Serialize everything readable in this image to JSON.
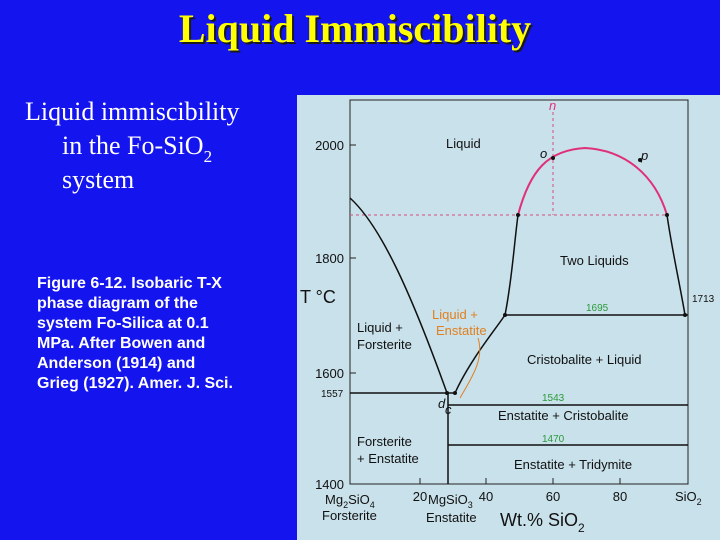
{
  "header": {
    "title": "Liquid Immiscibility"
  },
  "body": {
    "heading_lines": [
      "Liquid immiscibility",
      "in the Fo-SiO",
      "system"
    ],
    "heading_subscript": "2",
    "caption_lines": [
      "Figure 6-12. Isobaric T-X",
      "phase diagram of the",
      "system Fo-Silica at 0.1",
      "MPa. After Bowen and",
      "Anderson (1914) and",
      "Grieg (1927). Amer. J. Sci."
    ]
  },
  "figure": {
    "y_axis_label": "T °C",
    "y_tick_labels": [
      "2000",
      "1800",
      "1600",
      "1400"
    ],
    "x_tick_labels": [
      "20",
      "40",
      "60",
      "80"
    ],
    "x_left_end": {
      "formula": [
        "Mg",
        "2",
        "SiO",
        "4"
      ],
      "name": "Forsterite"
    },
    "x_middle": {
      "formula": [
        "MgSiO",
        "3"
      ],
      "name": "Enstatite"
    },
    "x_right_end": [
      "SiO",
      "2"
    ],
    "x_axis_label": [
      "Wt.% SiO",
      "2"
    ],
    "fields": {
      "liquid": "Liquid",
      "two_liquids": "Two Liquids",
      "liquid_enstatite": [
        "Liquid +",
        "Enstatite"
      ],
      "liquid_forsterite": [
        "Liquid +",
        "Forsterite"
      ],
      "cristobalite_liquid": "Cristobalite + Liquid",
      "enstatite_cristobalite": "Enstatite + Cristobalite",
      "forsterite_enstatite": [
        "Forsterite",
        "+ Enstatite"
      ],
      "enstatite_tridymite": "Enstatite + Tridymite"
    },
    "temperatures": [
      "1695",
      "1713",
      "1557",
      "1543",
      "1470"
    ],
    "points": [
      "n",
      "o",
      "p",
      "d",
      "c"
    ]
  }
}
